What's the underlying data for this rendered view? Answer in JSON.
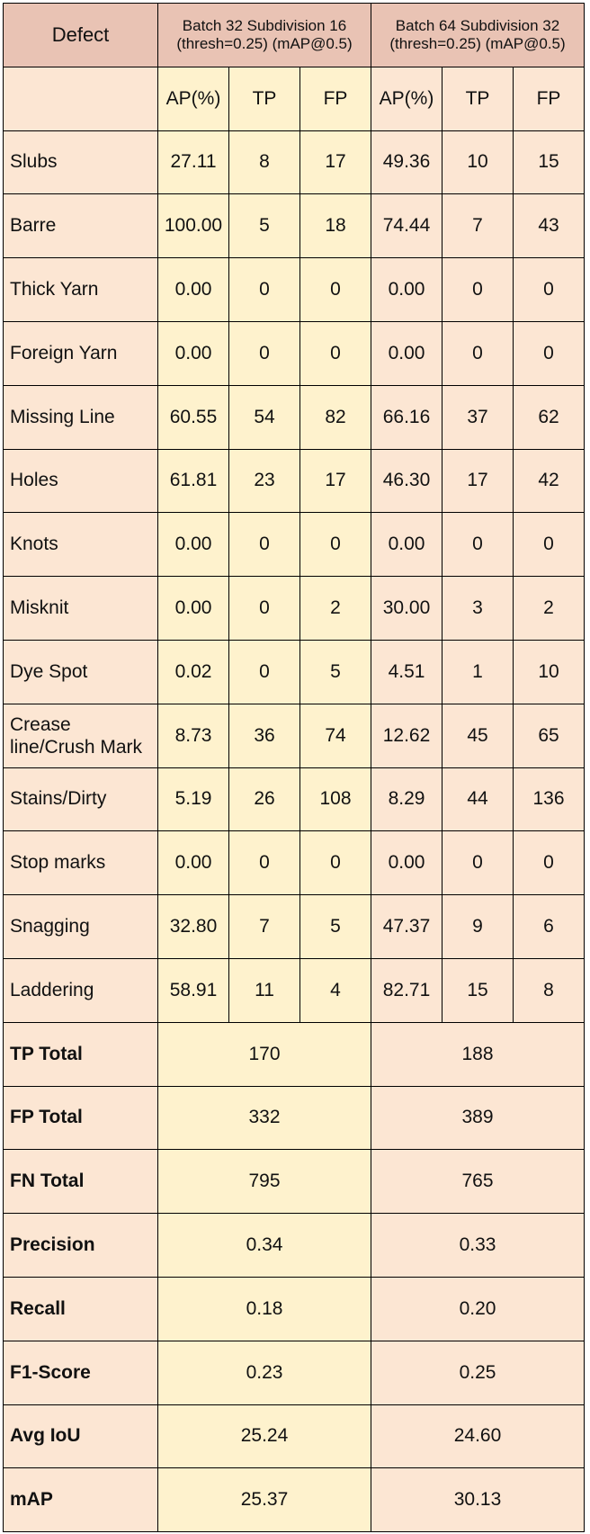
{
  "header": {
    "defect": "Defect",
    "group1": "Batch 32 Subdivision 16 (thresh=0.25) (mAP@0.5)",
    "group2": "Batch 64 Subdivision 32 (thresh=0.25) (mAP@0.5)"
  },
  "subheader": [
    "AP(%)",
    "TP",
    "FP",
    "AP(%)",
    "TP",
    "FP"
  ],
  "rows": [
    {
      "label": "Slubs",
      "cells": [
        "27.11",
        "8",
        "17",
        "49.36",
        "10",
        "15"
      ]
    },
    {
      "label": "Barre",
      "cells": [
        "100.00",
        "5",
        "18",
        "74.44",
        "7",
        "43"
      ]
    },
    {
      "label": "Thick Yarn",
      "cells": [
        "0.00",
        "0",
        "0",
        "0.00",
        "0",
        "0"
      ]
    },
    {
      "label": "Foreign Yarn",
      "cells": [
        "0.00",
        "0",
        "0",
        "0.00",
        "0",
        "0"
      ]
    },
    {
      "label": "Missing Line",
      "cells": [
        "60.55",
        "54",
        "82",
        "66.16",
        "37",
        "62"
      ]
    },
    {
      "label": "Holes",
      "cells": [
        "61.81",
        "23",
        "17",
        "46.30",
        "17",
        "42"
      ]
    },
    {
      "label": "Knots",
      "cells": [
        "0.00",
        "0",
        "0",
        "0.00",
        "0",
        "0"
      ]
    },
    {
      "label": "Misknit",
      "cells": [
        "0.00",
        "0",
        "2",
        "30.00",
        "3",
        "2"
      ]
    },
    {
      "label": "Dye Spot",
      "cells": [
        "0.02",
        "0",
        "5",
        "4.51",
        "1",
        "10"
      ]
    },
    {
      "label": "Crease line/Crush Mark",
      "cells": [
        "8.73",
        "36",
        "74",
        "12.62",
        "45",
        "65"
      ]
    },
    {
      "label": "Stains/Dirty",
      "cells": [
        "5.19",
        "26",
        "108",
        "8.29",
        "44",
        "136"
      ]
    },
    {
      "label": "Stop marks",
      "cells": [
        "0.00",
        "0",
        "0",
        "0.00",
        "0",
        "0"
      ]
    },
    {
      "label": "Snagging",
      "cells": [
        "32.80",
        "7",
        "5",
        "47.37",
        "9",
        "6"
      ]
    },
    {
      "label": "Laddering",
      "cells": [
        "58.91",
        "11",
        "4",
        "82.71",
        "15",
        "8"
      ]
    }
  ],
  "summary": [
    {
      "label": "TP Total",
      "values": [
        "170",
        "188"
      ]
    },
    {
      "label": "FP Total",
      "values": [
        "332",
        "389"
      ]
    },
    {
      "label": "FN Total",
      "values": [
        "795",
        "765"
      ]
    },
    {
      "label": "Precision",
      "values": [
        "0.34",
        "0.33"
      ]
    },
    {
      "label": "Recall",
      "values": [
        "0.18",
        "0.20"
      ]
    },
    {
      "label": "F1-Score",
      "values": [
        "0.23",
        "0.25"
      ]
    },
    {
      "label": "Avg IoU",
      "values": [
        "25.24",
        "24.60"
      ]
    },
    {
      "label": "mAP",
      "values": [
        "25.37",
        "30.13"
      ]
    }
  ],
  "colors": {
    "header_bg": "#e9c3b4",
    "peach_bg": "#fce6d3",
    "yellow_bg": "#fef2cd",
    "border": "#000000"
  }
}
